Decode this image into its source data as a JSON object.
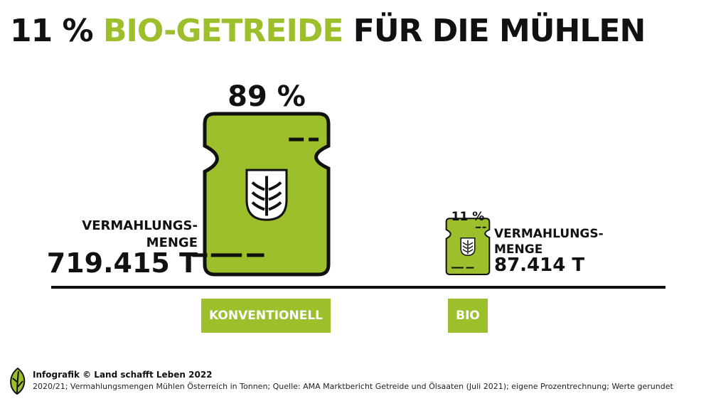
{
  "title": {
    "part1": "11 %",
    "part2": "BIO-GETREIDE",
    "part3": "FÜR DIE MÜHLEN"
  },
  "colors": {
    "accent": "#9cbf2b",
    "ink": "#111111"
  },
  "chart_data": {
    "type": "bar",
    "title": "11 % BIO-GETREIDE FÜR DIE MÜHLEN",
    "categories": [
      "KONVENTIONELL",
      "BIO"
    ],
    "values": [
      719415,
      87414
    ],
    "percent_labels": [
      "89 %",
      "11 %"
    ],
    "value_labels": [
      "719.415 T",
      "87.414 T"
    ],
    "series_label": "VERMAHLUNGS-MENGE",
    "unit": "T",
    "bar_icon": "grain-sack-icon"
  },
  "labels": {
    "konv_measure": [
      "VERMAHLUNGS-",
      "MENGE"
    ],
    "bio_measure": [
      "VERMAHLUNGS-",
      "MENGE"
    ]
  },
  "footer": {
    "logo_icon": "leaf-icon",
    "credit": "Infografik © Land schafft Leben 2022",
    "note": "2020/21; Vermahlungsmengen Mühlen Österreich in Tonnen; Quelle: AMA Marktbericht Getreide und Ölsaaten (Juli 2021); eigene Prozentrechnung; Werte gerundet"
  }
}
